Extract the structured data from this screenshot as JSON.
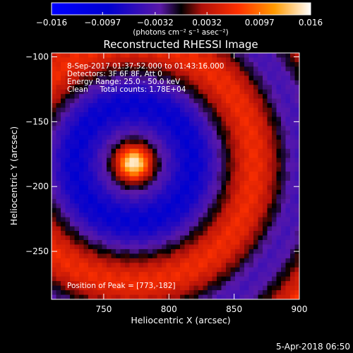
{
  "chart_data": {
    "type": "heatmap",
    "title": "Reconstructed RHESSI Image",
    "xlabel": "Heliocentric X (arcsec)",
    "ylabel": "Heliocentric Y (arcsec)",
    "xlim": [
      710,
      900
    ],
    "ylim": [
      -287,
      -97
    ],
    "x_ticks": [
      750,
      800,
      850,
      900
    ],
    "x_tick_labels": [
      "750",
      "800",
      "850",
      "900"
    ],
    "y_ticks": [
      -100,
      -150,
      -200,
      -250
    ],
    "y_tick_labels": [
      "−100",
      "−150",
      "−200",
      "−250"
    ],
    "colorbar": {
      "range": [
        -0.016,
        0.016
      ],
      "ticks": [
        -0.016,
        -0.0097,
        -0.0032,
        0.0032,
        0.0097,
        0.016
      ],
      "tick_labels": [
        "−0.016",
        "−0.0097",
        "−0.0032",
        "0.0032",
        "0.0097",
        "0.016"
      ],
      "unit_label": "(photons cm⁻² s⁻¹ asec⁻²)"
    },
    "annotations": [
      "8-Sep-2017 01:37:52.000 to 01:43:16.000",
      "Detectors: 3F 6F 8F, Att 0",
      "Energy Range: 25.0 - 50.0 keV",
      "Clean     Total counts: 1.78E+04"
    ],
    "peak_label": "Position of Peak = [773,-182]",
    "peak": {
      "x": 773,
      "y": -182,
      "value": 0.016
    },
    "grid": false
  },
  "footer_date": "5-Apr-2018 06:50"
}
